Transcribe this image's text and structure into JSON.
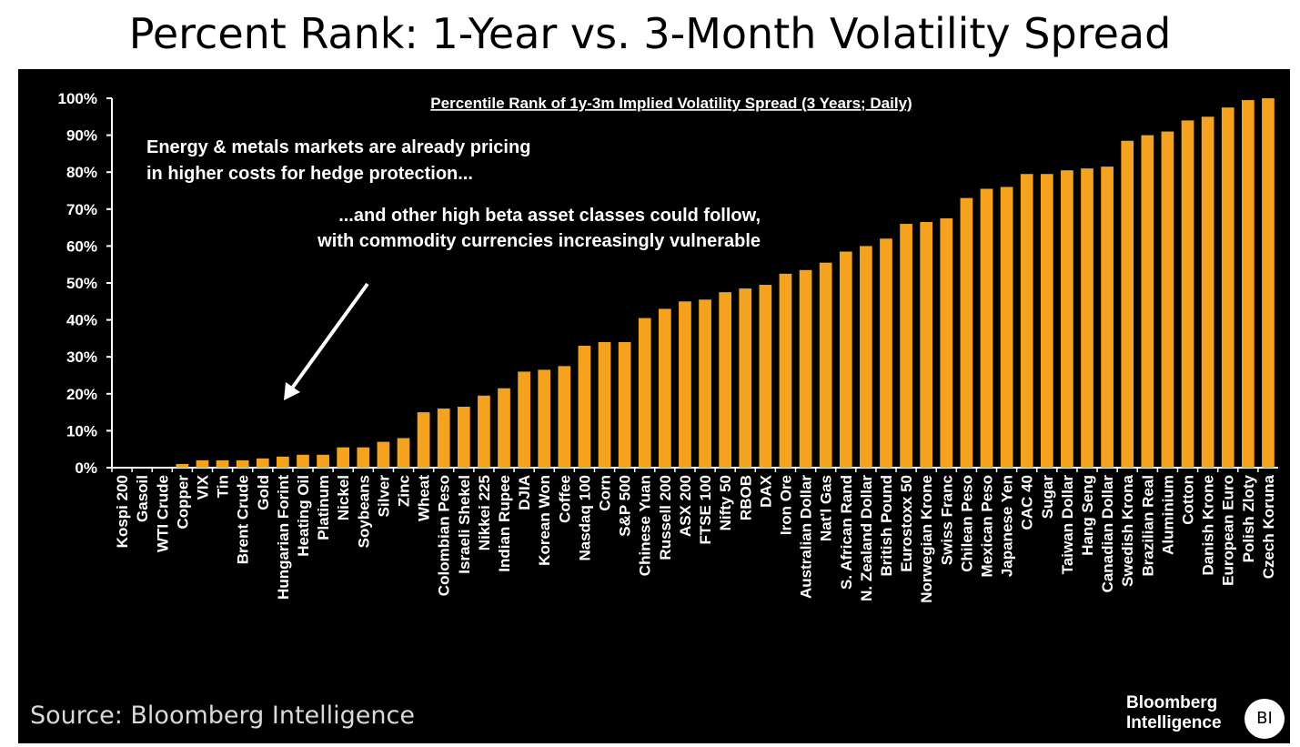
{
  "title": "Percent Rank: 1-Year vs. 3-Month Volatility Spread",
  "source": "Source: Bloomberg Intelligence",
  "brand": {
    "line1": "Bloomberg",
    "line2": "Intelligence",
    "badge": "BI"
  },
  "colors": {
    "bar": "#F5A21E",
    "background": "#000000",
    "text": "#FFFFFF"
  },
  "annotations": {
    "line1": "Energy & metals markets are already pricing",
    "line2": "in higher costs for hedge protection...",
    "line3": "...and other high beta asset classes could follow,",
    "line4": "with commodity currencies increasingly vulnerable"
  },
  "chart_data": {
    "type": "bar",
    "title": "Percentile Rank of 1y-3m Implied Volatility Spread (3 Years; Daily)",
    "xlabel": "",
    "ylabel": "",
    "ylim": [
      0,
      100
    ],
    "yticks": [
      "0%",
      "10%",
      "20%",
      "30%",
      "40%",
      "50%",
      "60%",
      "70%",
      "80%",
      "90%",
      "100%"
    ],
    "grid": false,
    "categories": [
      "Kospi 200",
      "Gasoil",
      "WTI Crude",
      "Copper",
      "VIX",
      "Tin",
      "Brent Crude",
      "Gold",
      "Hungarian Forint",
      "Heating Oil",
      "Platinum",
      "Nickel",
      "Soybeans",
      "Silver",
      "Zinc",
      "Wheat",
      "Colombian Peso",
      "Israeli Shekel",
      "Nikkei 225",
      "Indian Rupee",
      "DJIA",
      "Korean Won",
      "Coffee",
      "Nasdaq 100",
      "Corn",
      "S&P 500",
      "Chinese Yuan",
      "Russell 200",
      "ASX 200",
      "FTSE 100",
      "Nifty 50",
      "RBOB",
      "DAX",
      "Iron Ore",
      "Australian Dollar",
      "Nat'l Gas",
      "S. African Rand",
      "N. Zealand Dollar",
      "British Pound",
      "Eurostoxx 50",
      "Norwegian Krone",
      "Swiss Franc",
      "Chilean Peso",
      "Mexican Peso",
      "Japanese Yen",
      "CAC 40",
      "Sugar",
      "Taiwan Dollar",
      "Hang Seng",
      "Canadian Dollar",
      "Swedish Krona",
      "Brazilian Real",
      "Aluminium",
      "Cotton",
      "Danish Krone",
      "European Euro",
      "Polish Zloty",
      "Czech Koruna"
    ],
    "values": [
      0,
      0,
      0,
      1,
      2,
      2,
      2,
      2.5,
      3,
      3.5,
      3.5,
      5.5,
      5.5,
      7,
      8,
      15,
      16,
      16.5,
      19.5,
      21.5,
      26,
      26.5,
      27.5,
      33,
      34,
      34,
      40.5,
      43,
      45,
      45.5,
      47.5,
      48.5,
      49.5,
      52.5,
      53.5,
      55.5,
      58.5,
      60,
      62,
      66,
      66.5,
      67.5,
      73,
      75.5,
      76,
      79.5,
      79.5,
      80.5,
      81,
      81.5,
      88.5,
      90,
      91,
      94,
      95,
      97.5,
      99.5,
      100
    ]
  }
}
